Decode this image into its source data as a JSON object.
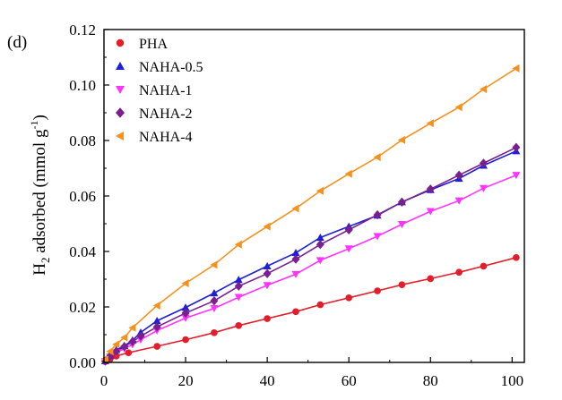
{
  "panel_label": "(d)",
  "chart_data": {
    "type": "scatter",
    "title": "",
    "xlabel": "",
    "ylabel": {
      "main": "H",
      "sub": "2",
      "rest": " adsorbed (mmol g",
      "sup": "-1",
      "close": ")"
    },
    "xlim": [
      0,
      103
    ],
    "ylim": [
      0,
      0.12
    ],
    "xticks": [
      0,
      20,
      40,
      60,
      80,
      100
    ],
    "yticks": [
      0.0,
      0.02,
      0.04,
      0.06,
      0.08,
      0.1,
      0.12
    ],
    "ytick_labels": [
      "0.00",
      "0.02",
      "0.04",
      "0.06",
      "0.08",
      "0.10",
      "0.12"
    ],
    "grid": false,
    "legend_position": "top-left",
    "series": [
      {
        "name": "PHA",
        "color": "#e21e2b",
        "marker": "circle",
        "x": [
          0.3,
          1.5,
          3,
          6,
          13,
          20,
          27,
          33,
          40,
          47,
          53,
          60,
          67,
          73,
          80,
          87,
          93,
          101
        ],
        "y": [
          0.0003,
          0.0012,
          0.0023,
          0.0035,
          0.0058,
          0.0082,
          0.0107,
          0.0133,
          0.0158,
          0.0183,
          0.0208,
          0.0233,
          0.0258,
          0.028,
          0.0302,
          0.0325,
          0.0347,
          0.0378
        ]
      },
      {
        "name": "NAHA-0.5",
        "color": "#1f1fd6",
        "marker": "triangle-up",
        "x": [
          0.3,
          1.5,
          3,
          5,
          7,
          9,
          13,
          20,
          27,
          33,
          40,
          47,
          53,
          60,
          67,
          73,
          80,
          87,
          93,
          101
        ],
        "y": [
          0.0005,
          0.0025,
          0.0045,
          0.006,
          0.008,
          0.0108,
          0.015,
          0.0198,
          0.025,
          0.0298,
          0.0347,
          0.0395,
          0.045,
          0.049,
          0.053,
          0.0578,
          0.0622,
          0.0663,
          0.071,
          0.0762
        ]
      },
      {
        "name": "NAHA-1",
        "color": "#ff33ff",
        "marker": "triangle-down",
        "x": [
          0.3,
          1.5,
          3,
          5,
          7,
          9,
          13,
          20,
          27,
          33,
          40,
          47,
          53,
          60,
          67,
          73,
          80,
          87,
          93,
          101
        ],
        "y": [
          0.0004,
          0.002,
          0.0035,
          0.005,
          0.0065,
          0.0082,
          0.0115,
          0.016,
          0.0195,
          0.0235,
          0.0278,
          0.0318,
          0.0368,
          0.041,
          0.0455,
          0.0498,
          0.0545,
          0.0583,
          0.0628,
          0.0675
        ]
      },
      {
        "name": "NAHA-2",
        "color": "#7a1f8e",
        "marker": "diamond",
        "x": [
          0.3,
          1.5,
          3,
          5,
          7,
          9,
          13,
          20,
          27,
          33,
          40,
          47,
          53,
          60,
          67,
          73,
          80,
          87,
          93,
          101
        ],
        "y": [
          0.0005,
          0.0022,
          0.004,
          0.0057,
          0.0075,
          0.0095,
          0.0128,
          0.0178,
          0.0222,
          0.0275,
          0.032,
          0.0372,
          0.0425,
          0.0478,
          0.0532,
          0.0578,
          0.0625,
          0.0675,
          0.0718,
          0.0775
        ]
      },
      {
        "name": "NAHA-4",
        "color": "#f5921e",
        "marker": "triangle-left",
        "x": [
          0.3,
          1.5,
          3,
          5,
          7,
          13,
          20,
          27,
          33,
          40,
          47,
          53,
          60,
          67,
          73,
          80,
          87,
          93,
          101
        ],
        "y": [
          0.001,
          0.004,
          0.0065,
          0.009,
          0.0125,
          0.0205,
          0.0285,
          0.0352,
          0.0425,
          0.049,
          0.0555,
          0.0618,
          0.068,
          0.074,
          0.0802,
          0.0862,
          0.092,
          0.0985,
          0.106
        ]
      }
    ]
  }
}
